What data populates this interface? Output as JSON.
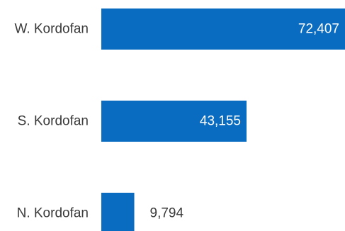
{
  "chart_data": {
    "type": "bar",
    "orientation": "horizontal",
    "categories": [
      "W. Kordofan",
      "S. Kordofan",
      "N. Kordofan"
    ],
    "values": [
      72407,
      43155,
      9794
    ],
    "value_labels": [
      "72,407",
      "43,155",
      "9,794"
    ],
    "bar_color": "#0a6cc0",
    "xlim": [
      0,
      72407
    ],
    "grid": false,
    "legend": "none",
    "label_colors": {
      "inside": "#ffffff",
      "outside": "#3a3a3a"
    }
  }
}
